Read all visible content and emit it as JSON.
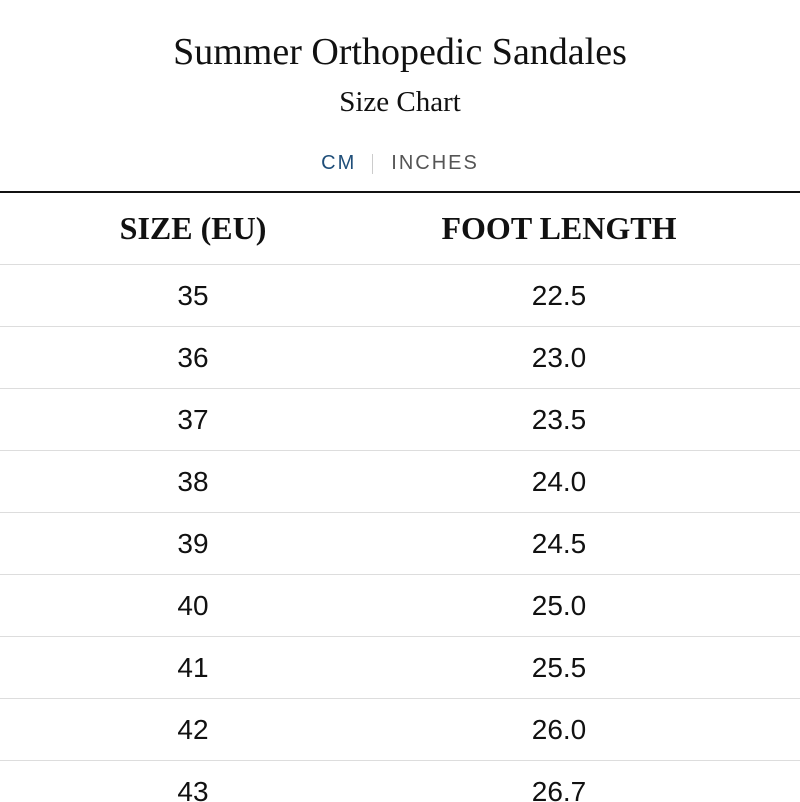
{
  "header": {
    "title": "Summer Orthopedic Sandales",
    "subtitle": "Size Chart"
  },
  "tabs": [
    "CM",
    "INCHES"
  ],
  "table": {
    "columns": [
      "SIZE (EU)",
      "FOOT LENGTH"
    ],
    "rows": [
      [
        "35",
        "22.5"
      ],
      [
        "36",
        "23.0"
      ],
      [
        "37",
        "23.5"
      ],
      [
        "38",
        "24.0"
      ],
      [
        "39",
        "24.5"
      ],
      [
        "40",
        "25.0"
      ],
      [
        "41",
        "25.5"
      ],
      [
        "42",
        "26.0"
      ],
      [
        "43",
        "26.7"
      ]
    ]
  }
}
